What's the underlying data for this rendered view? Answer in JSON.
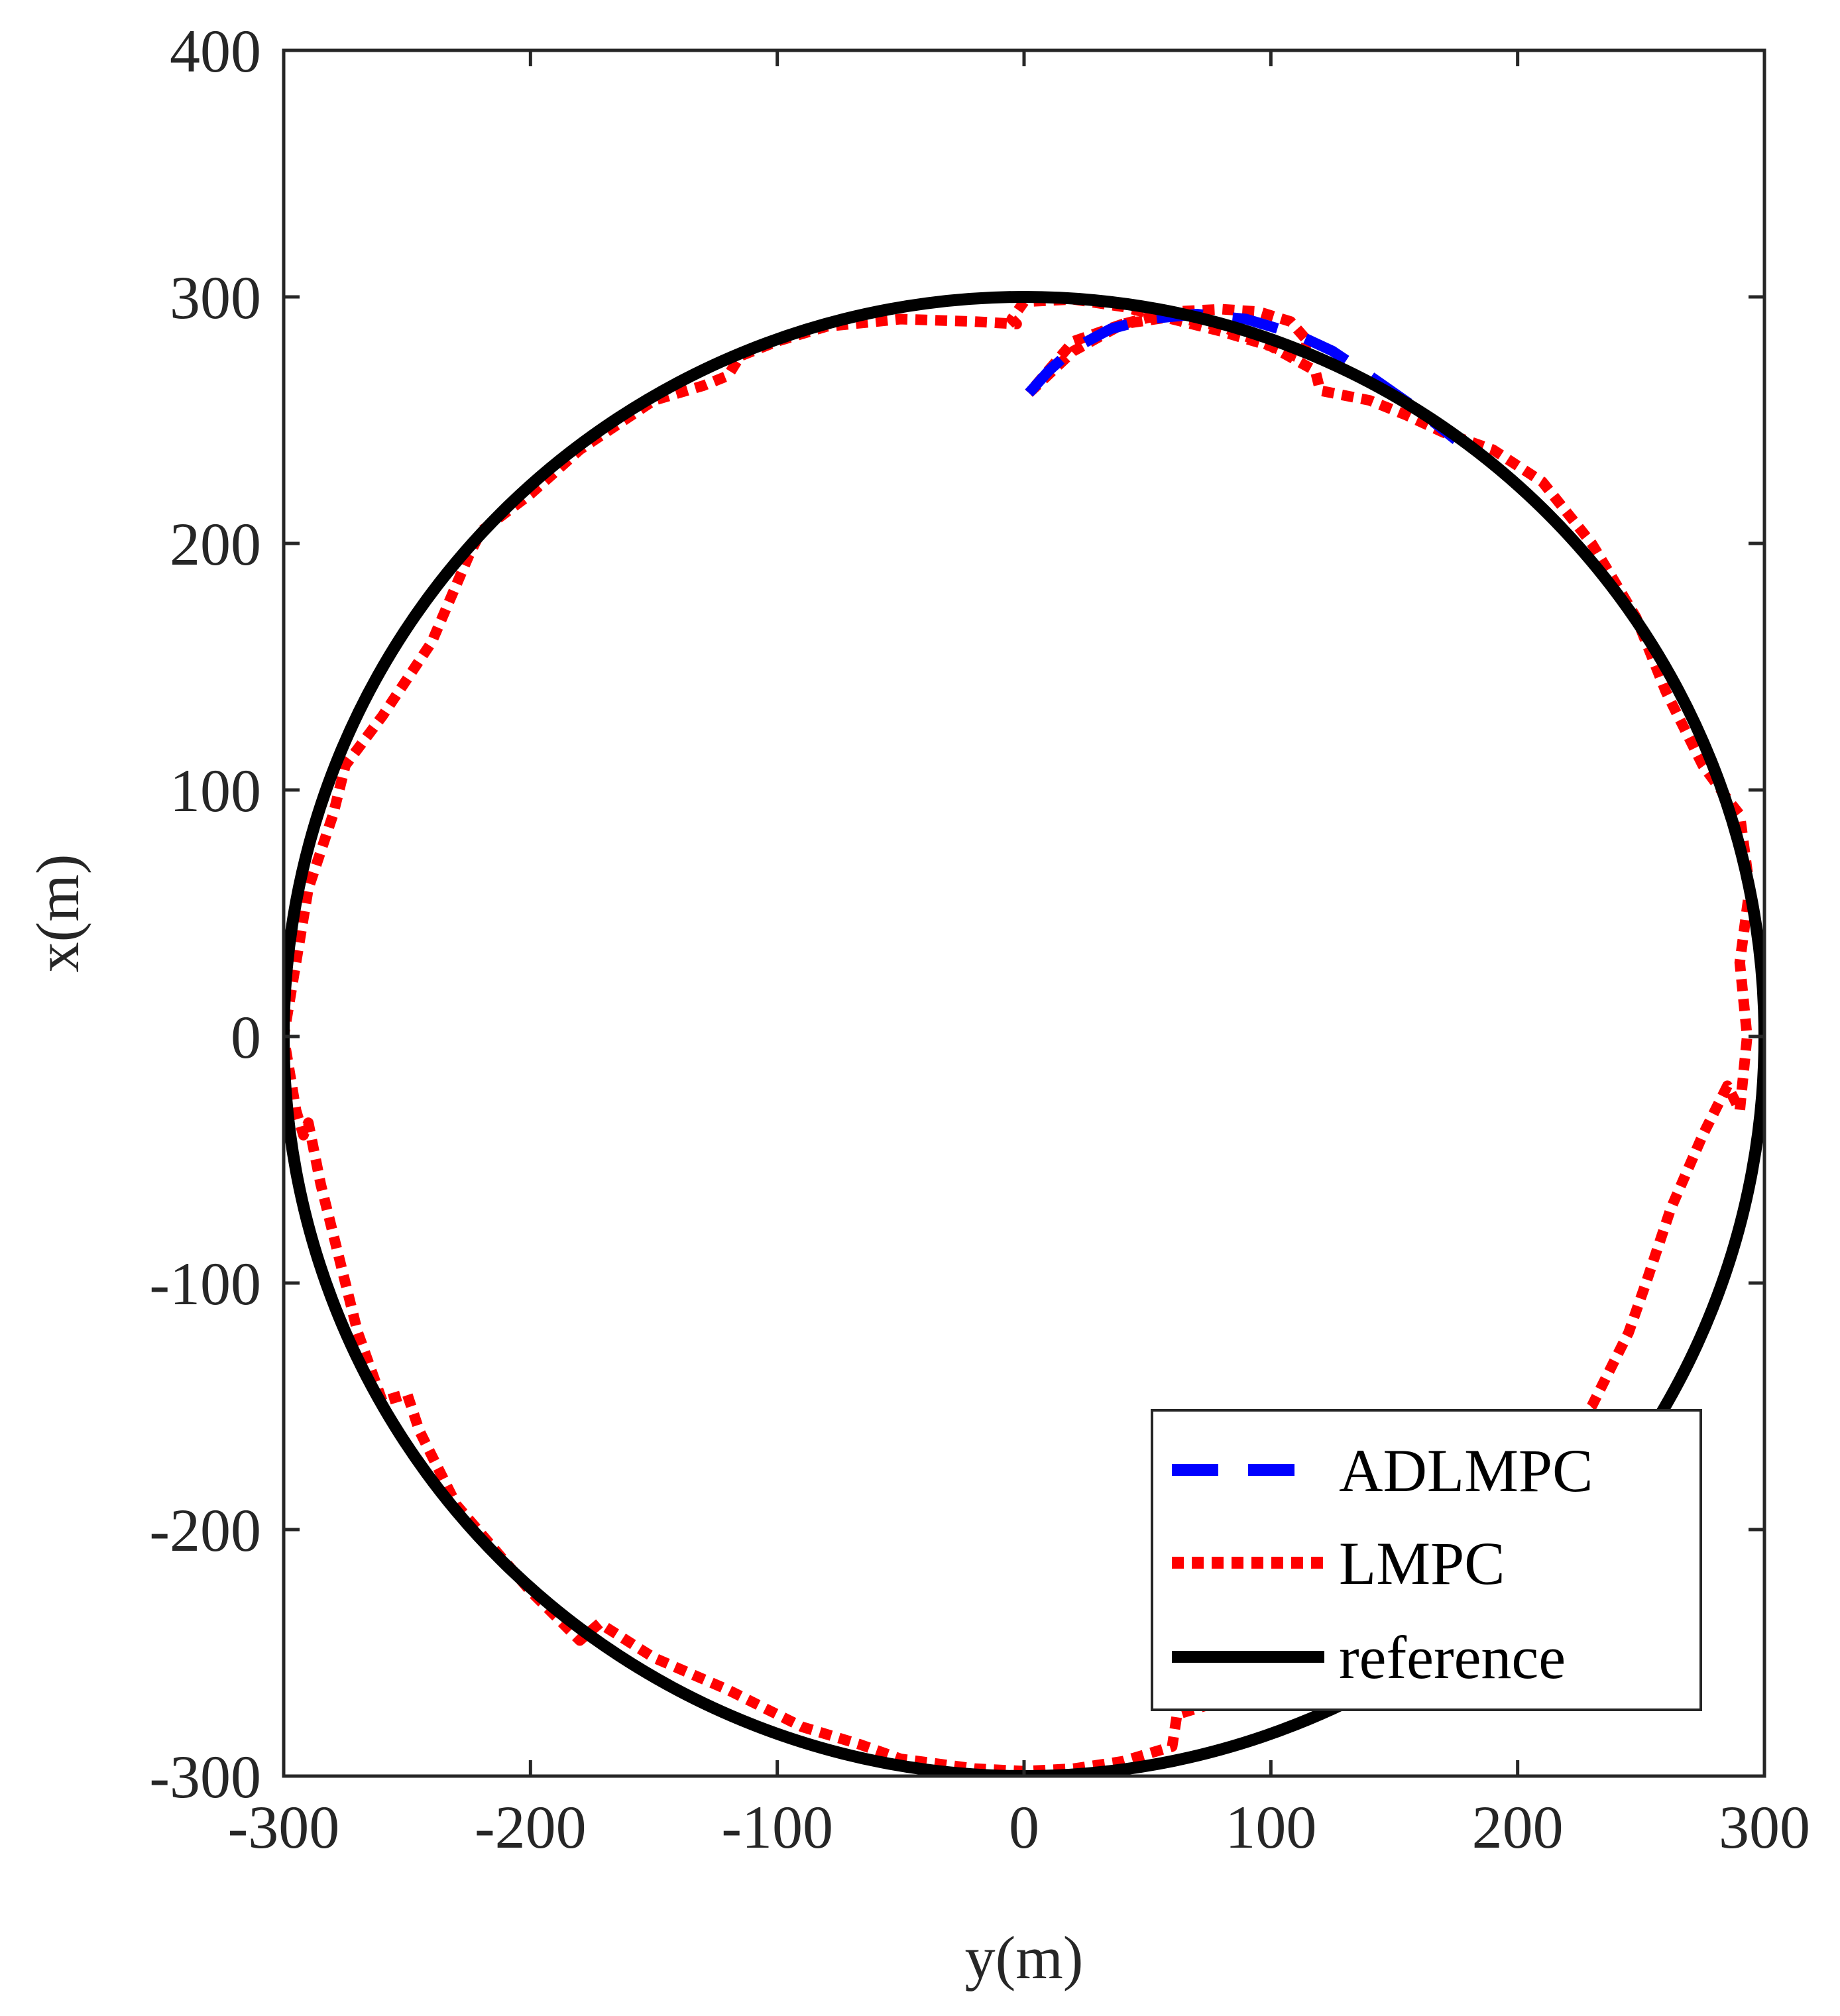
{
  "chart_data": {
    "type": "line",
    "title": "",
    "xlabel": "y(m)",
    "ylabel": "x(m)",
    "xlim": [
      -300,
      300
    ],
    "ylim": [
      -300,
      400
    ],
    "xticks": [
      -300,
      -200,
      -100,
      0,
      100,
      200,
      300
    ],
    "yticks": [
      -300,
      -200,
      -100,
      0,
      100,
      200,
      300,
      400
    ],
    "grid": false,
    "legend_position": "bottom-right",
    "series": [
      {
        "name": "ADLMPC",
        "style": "dashed",
        "color": "#0000ff",
        "x": [
          2,
          10,
          20,
          35,
          50,
          70,
          90,
          110,
          125,
          140,
          160,
          175
        ],
        "y": [
          261,
          270,
          279,
          287,
          291,
          293,
          291,
          285,
          278,
          268,
          254,
          242
        ]
      },
      {
        "name": "LMPC",
        "style": "dotted",
        "color": "#ff0000",
        "x": [
          2,
          20,
          40,
          60,
          80,
          95,
          108,
          115,
          112,
          100,
          80,
          60,
          40,
          20,
          0,
          -5,
          -3,
          -20,
          -50,
          -80,
          -100,
          -115,
          -120,
          -130,
          -150,
          -180,
          -200,
          -220,
          -225,
          -240,
          -260,
          -275,
          -280,
          -290,
          -295,
          -300,
          -295,
          -292,
          -290,
          -285,
          -270,
          -260,
          -250,
          -245,
          -230,
          -200,
          -180,
          -172,
          -150,
          -120,
          -90,
          -67,
          -50,
          -20,
          0,
          20,
          40,
          60,
          62,
          75,
          100,
          125,
          150,
          170,
          190,
          210,
          230,
          245,
          252,
          262,
          275,
          285,
          290,
          293,
          290,
          294,
          290,
          286,
          275,
          260,
          248,
          230,
          210,
          190,
          170,
          155,
          140,
          120,
          118,
          100,
          80,
          60,
          40,
          20,
          2
        ],
        "y": [
          261,
          278,
          289,
          294,
          295,
          294,
          290,
          282,
          275,
          280,
          286,
          291,
          296,
          299,
          298,
          291,
          289,
          290,
          291,
          288,
          282,
          276,
          268,
          264,
          258,
          238,
          220,
          205,
          195,
          160,
          130,
          110,
          90,
          60,
          30,
          0,
          -30,
          -40,
          -35,
          -60,
          -120,
          -148,
          -145,
          -160,
          -190,
          -225,
          -245,
          -238,
          -252,
          -265,
          -280,
          -287,
          -293,
          -297,
          -298,
          -297,
          -294,
          -288,
          -275,
          -271,
          -258,
          -245,
          -228,
          -210,
          -190,
          -170,
          -150,
          -120,
          -100,
          -70,
          -40,
          -20,
          -30,
          0,
          30,
          60,
          90,
          95,
          110,
          140,
          170,
          200,
          225,
          238,
          245,
          252,
          258,
          262,
          270,
          280,
          288,
          292,
          289,
          282,
          261
        ]
      },
      {
        "name": "reference",
        "style": "solid",
        "color": "#000000",
        "shape": "circle",
        "center": [
          0,
          0
        ],
        "radius": 300
      }
    ]
  }
}
